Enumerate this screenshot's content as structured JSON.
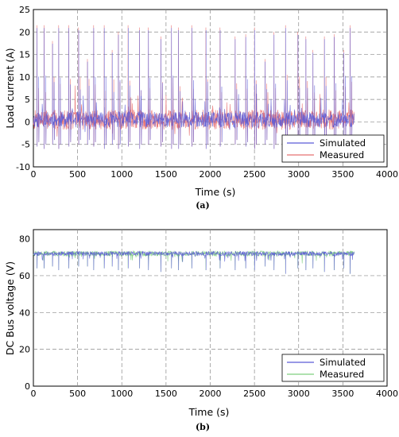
{
  "chart_data": [
    {
      "id": "a",
      "type": "line",
      "caption": "(a)",
      "xlabel": "Time (s)",
      "ylabel": "Load current (A)",
      "xlim": [
        0,
        4000
      ],
      "ylim": [
        -10,
        25
      ],
      "xticks": [
        0,
        500,
        1000,
        1500,
        2000,
        2500,
        3000,
        3500,
        4000
      ],
      "yticks": [
        -10,
        -5,
        0,
        5,
        10,
        15,
        20,
        25
      ],
      "grid": true,
      "legend_position": "bottom-right",
      "series": [
        {
          "name": "Simulated",
          "color": "#5b5bd6"
        },
        {
          "name": "Measured",
          "color": "#e87070"
        }
      ],
      "signal": {
        "duration": 3630,
        "base": 0.5,
        "baseline_band": [
          -1.5,
          3
        ],
        "cycle_peaks": [
          {
            "t": 40,
            "max": 21.5,
            "min": -5.5
          },
          {
            "t": 120,
            "max": 21.5,
            "min": -6
          },
          {
            "t": 215,
            "max": 18,
            "min": -5
          },
          {
            "t": 285,
            "max": 21.5,
            "min": -6
          },
          {
            "t": 400,
            "max": 21.5,
            "min": -5.5
          },
          {
            "t": 510,
            "max": 21,
            "min": -5
          },
          {
            "t": 610,
            "max": 14,
            "min": -5
          },
          {
            "t": 680,
            "max": 21.5,
            "min": -5.5
          },
          {
            "t": 800,
            "max": 21.5,
            "min": -6
          },
          {
            "t": 890,
            "max": 16,
            "min": -5
          },
          {
            "t": 960,
            "max": 20,
            "min": -6
          },
          {
            "t": 1070,
            "max": 21.5,
            "min": -5.5
          },
          {
            "t": 1200,
            "max": 21,
            "min": -6
          },
          {
            "t": 1300,
            "max": 21,
            "min": -5
          },
          {
            "t": 1440,
            "max": 19,
            "min": -5.5
          },
          {
            "t": 1560,
            "max": 21.5,
            "min": -6
          },
          {
            "t": 1640,
            "max": 21,
            "min": -6
          },
          {
            "t": 1790,
            "max": 21.5,
            "min": -5.5
          },
          {
            "t": 1950,
            "max": 21,
            "min": -6
          },
          {
            "t": 2110,
            "max": 21,
            "min": -5.5
          },
          {
            "t": 2280,
            "max": 19,
            "min": -5
          },
          {
            "t": 2400,
            "max": 19.5,
            "min": -5.5
          },
          {
            "t": 2500,
            "max": 21,
            "min": -6
          },
          {
            "t": 2620,
            "max": 14,
            "min": -5
          },
          {
            "t": 2720,
            "max": 20,
            "min": -6
          },
          {
            "t": 2850,
            "max": 21.5,
            "min": -6
          },
          {
            "t": 2990,
            "max": 20,
            "min": -5.5
          },
          {
            "t": 3080,
            "max": 19,
            "min": -5
          },
          {
            "t": 3160,
            "max": 16,
            "min": -5
          },
          {
            "t": 3290,
            "max": 19,
            "min": -5.5
          },
          {
            "t": 3400,
            "max": 19.5,
            "min": -6
          },
          {
            "t": 3510,
            "max": 16,
            "min": -5
          },
          {
            "t": 3580,
            "max": 21.5,
            "min": -6
          }
        ]
      }
    },
    {
      "id": "b",
      "type": "line",
      "caption": "(b)",
      "xlabel": "Time (s)",
      "ylabel": "DC Bus voltage (V)",
      "xlim": [
        0,
        4000
      ],
      "ylim": [
        0,
        85
      ],
      "xticks": [
        0,
        500,
        1000,
        1500,
        2000,
        2500,
        3000,
        3500,
        4000
      ],
      "yticks": [
        0,
        20,
        40,
        60,
        80
      ],
      "grid": true,
      "legend_position": "bottom-right",
      "series": [
        {
          "name": "Simulated",
          "color": "#5b5bd6"
        },
        {
          "name": "Measured",
          "color": "#7fcf7f"
        }
      ],
      "signal": {
        "duration": 3630,
        "base": 72,
        "baseline_band": [
          70.5,
          73.5
        ],
        "cycle_dips": [
          {
            "t": 40,
            "min": 64
          },
          {
            "t": 120,
            "min": 64
          },
          {
            "t": 215,
            "min": 65
          },
          {
            "t": 285,
            "min": 63
          },
          {
            "t": 400,
            "min": 64
          },
          {
            "t": 510,
            "min": 65
          },
          {
            "t": 610,
            "min": 65
          },
          {
            "t": 680,
            "min": 63
          },
          {
            "t": 800,
            "min": 64
          },
          {
            "t": 890,
            "min": 65
          },
          {
            "t": 960,
            "min": 63
          },
          {
            "t": 1070,
            "min": 64
          },
          {
            "t": 1200,
            "min": 64
          },
          {
            "t": 1300,
            "min": 63
          },
          {
            "t": 1440,
            "min": 62
          },
          {
            "t": 1560,
            "min": 64
          },
          {
            "t": 1640,
            "min": 63
          },
          {
            "t": 1790,
            "min": 64
          },
          {
            "t": 1950,
            "min": 63
          },
          {
            "t": 2110,
            "min": 64
          },
          {
            "t": 2280,
            "min": 63
          },
          {
            "t": 2400,
            "min": 64
          },
          {
            "t": 2500,
            "min": 63
          },
          {
            "t": 2620,
            "min": 65
          },
          {
            "t": 2720,
            "min": 63
          },
          {
            "t": 2850,
            "min": 61
          },
          {
            "t": 2990,
            "min": 64
          },
          {
            "t": 3080,
            "min": 63
          },
          {
            "t": 3160,
            "min": 64
          },
          {
            "t": 3290,
            "min": 62
          },
          {
            "t": 3400,
            "min": 63
          },
          {
            "t": 3510,
            "min": 64
          },
          {
            "t": 3580,
            "min": 61
          }
        ]
      }
    }
  ]
}
